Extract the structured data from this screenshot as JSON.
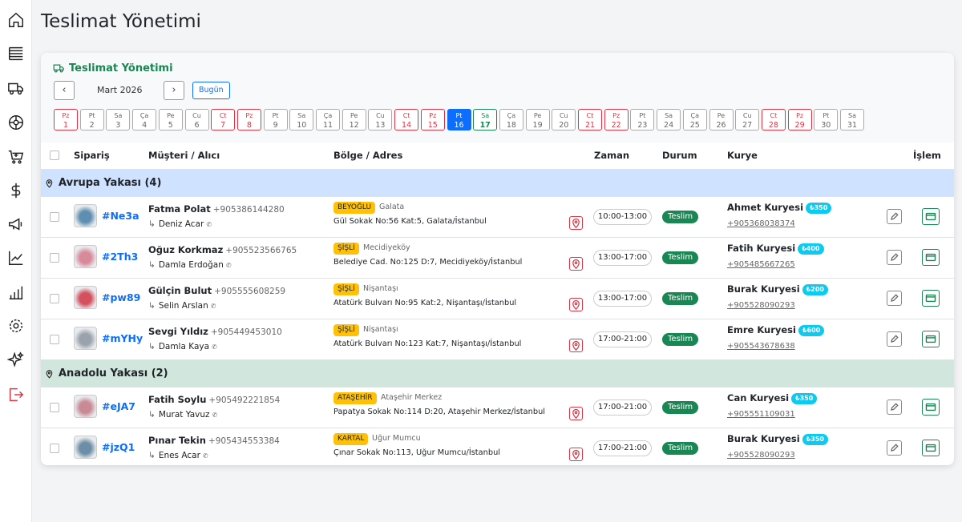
{
  "page_title": "Teslimat Yönetimi",
  "card": {
    "title": "Teslimat Yönetimi",
    "month": "Mart 2026",
    "today_button": "Bugün",
    "days": [
      {
        "dow": "Pz",
        "day": 1,
        "weekend": true
      },
      {
        "dow": "Pt",
        "day": 2
      },
      {
        "dow": "Sa",
        "day": 3
      },
      {
        "dow": "Ça",
        "day": 4
      },
      {
        "dow": "Pe",
        "day": 5
      },
      {
        "dow": "Cu",
        "day": 6
      },
      {
        "dow": "Ct",
        "day": 7,
        "weekend": true
      },
      {
        "dow": "Pz",
        "day": 8,
        "weekend": true
      },
      {
        "dow": "Pt",
        "day": 9
      },
      {
        "dow": "Sa",
        "day": 10
      },
      {
        "dow": "Ça",
        "day": 11
      },
      {
        "dow": "Pe",
        "day": 12
      },
      {
        "dow": "Cu",
        "day": 13
      },
      {
        "dow": "Ct",
        "day": 14,
        "weekend": true
      },
      {
        "dow": "Pz",
        "day": 15,
        "weekend": true
      },
      {
        "dow": "Pt",
        "day": 16,
        "selected": true
      },
      {
        "dow": "Sa",
        "day": 17,
        "today": true
      },
      {
        "dow": "Ça",
        "day": 18
      },
      {
        "dow": "Pe",
        "day": 19
      },
      {
        "dow": "Cu",
        "day": 20
      },
      {
        "dow": "Ct",
        "day": 21,
        "weekend": true
      },
      {
        "dow": "Pz",
        "day": 22,
        "weekend": true
      },
      {
        "dow": "Pt",
        "day": 23
      },
      {
        "dow": "Sa",
        "day": 24
      },
      {
        "dow": "Ça",
        "day": 25
      },
      {
        "dow": "Pe",
        "day": 26
      },
      {
        "dow": "Cu",
        "day": 27
      },
      {
        "dow": "Ct",
        "day": 28,
        "weekend": true
      },
      {
        "dow": "Pz",
        "day": 29,
        "weekend": true
      },
      {
        "dow": "Pt",
        "day": 30
      },
      {
        "dow": "Sa",
        "day": 31
      }
    ]
  },
  "table": {
    "headers": [
      "Sipariş",
      "Müşteri / Alıcı",
      "Bölge / Adres",
      "Zaman",
      "Durum",
      "Kurye",
      "İşlem"
    ],
    "groups": [
      {
        "title": "Avrupa Yakası (4)",
        "color": "#cfe2ff",
        "rows": [
          {
            "id": "#Ne3a",
            "customer": "Fatma Polat",
            "phone": "+905386144280",
            "recipient": "Deniz Acar",
            "district": "BEYOĞLU",
            "area": "Galata",
            "address": "Gül Sokak No:56 Kat:5, Galata/İstanbul",
            "time": "10:00-13:00",
            "status": "Teslim",
            "courier": "Ahmet Kuryesi",
            "fee": "₺350",
            "courier_phone": "+905368038374",
            "img": "#5f8fb0"
          },
          {
            "id": "#2Th3",
            "customer": "Oğuz Korkmaz",
            "phone": "+905523566765",
            "recipient": "Damla Erdoğan",
            "district": "ŞİŞLİ",
            "area": "Mecidiyeköy",
            "address": "Belediye Cad. No:125 D:7, Mecidiyeköy/İstanbul",
            "time": "13:00-17:00",
            "status": "Teslim",
            "courier": "Fatih Kuryesi",
            "fee": "₺400",
            "courier_phone": "+905485667265",
            "img": "#d98a9a"
          },
          {
            "id": "#pw89",
            "customer": "Gülçin Bulut",
            "phone": "+905555608259",
            "recipient": "Selin Arslan",
            "district": "ŞİŞLİ",
            "area": "Nişantaşı",
            "address": "Atatürk Bulvarı No:95 Kat:2, Nişantaşı/İstanbul",
            "time": "13:00-17:00",
            "status": "Teslim",
            "courier": "Burak Kuryesi",
            "fee": "₺200",
            "courier_phone": "+905528090293",
            "img": "#d4505e"
          },
          {
            "id": "#mYHy",
            "customer": "Sevgi Yıldız",
            "phone": "+905449453010",
            "recipient": "Damla Kaya",
            "district": "ŞİŞLİ",
            "area": "Nişantaşı",
            "address": "Atatürk Bulvarı No:123 Kat:7, Nişantaşı/İstanbul",
            "time": "17:00-21:00",
            "status": "Teslim",
            "courier": "Emre Kuryesi",
            "fee": "₺600",
            "courier_phone": "+905543678638",
            "img": "#9aa3ab"
          }
        ]
      },
      {
        "title": "Anadolu Yakası (2)",
        "color": "#d1e7dd",
        "rows": [
          {
            "id": "#eJA7",
            "customer": "Fatih Soylu",
            "phone": "+905492221854",
            "recipient": "Murat Yavuz",
            "district": "ATAŞEHİR",
            "area": "Ataşehir Merkez",
            "address": "Papatya Sokak No:114 D:20, Ataşehir Merkez/İstanbul",
            "time": "17:00-21:00",
            "status": "Teslim",
            "courier": "Can Kuryesi",
            "fee": "₺350",
            "courier_phone": "+905551109031",
            "img": "#c98a96"
          },
          {
            "id": "#jzQ1",
            "customer": "Pınar Tekin",
            "phone": "+905434553384",
            "recipient": "Enes Acar",
            "district": "KARTAL",
            "area": "Uğur Mumcu",
            "address": "Çınar Sokak No:113, Uğur Mumcu/İstanbul",
            "time": "17:00-21:00",
            "status": "Teslim",
            "courier": "Burak Kuryesi",
            "fee": "₺350",
            "courier_phone": "+905528090293",
            "img": "#6d8ea6"
          }
        ]
      }
    ]
  }
}
